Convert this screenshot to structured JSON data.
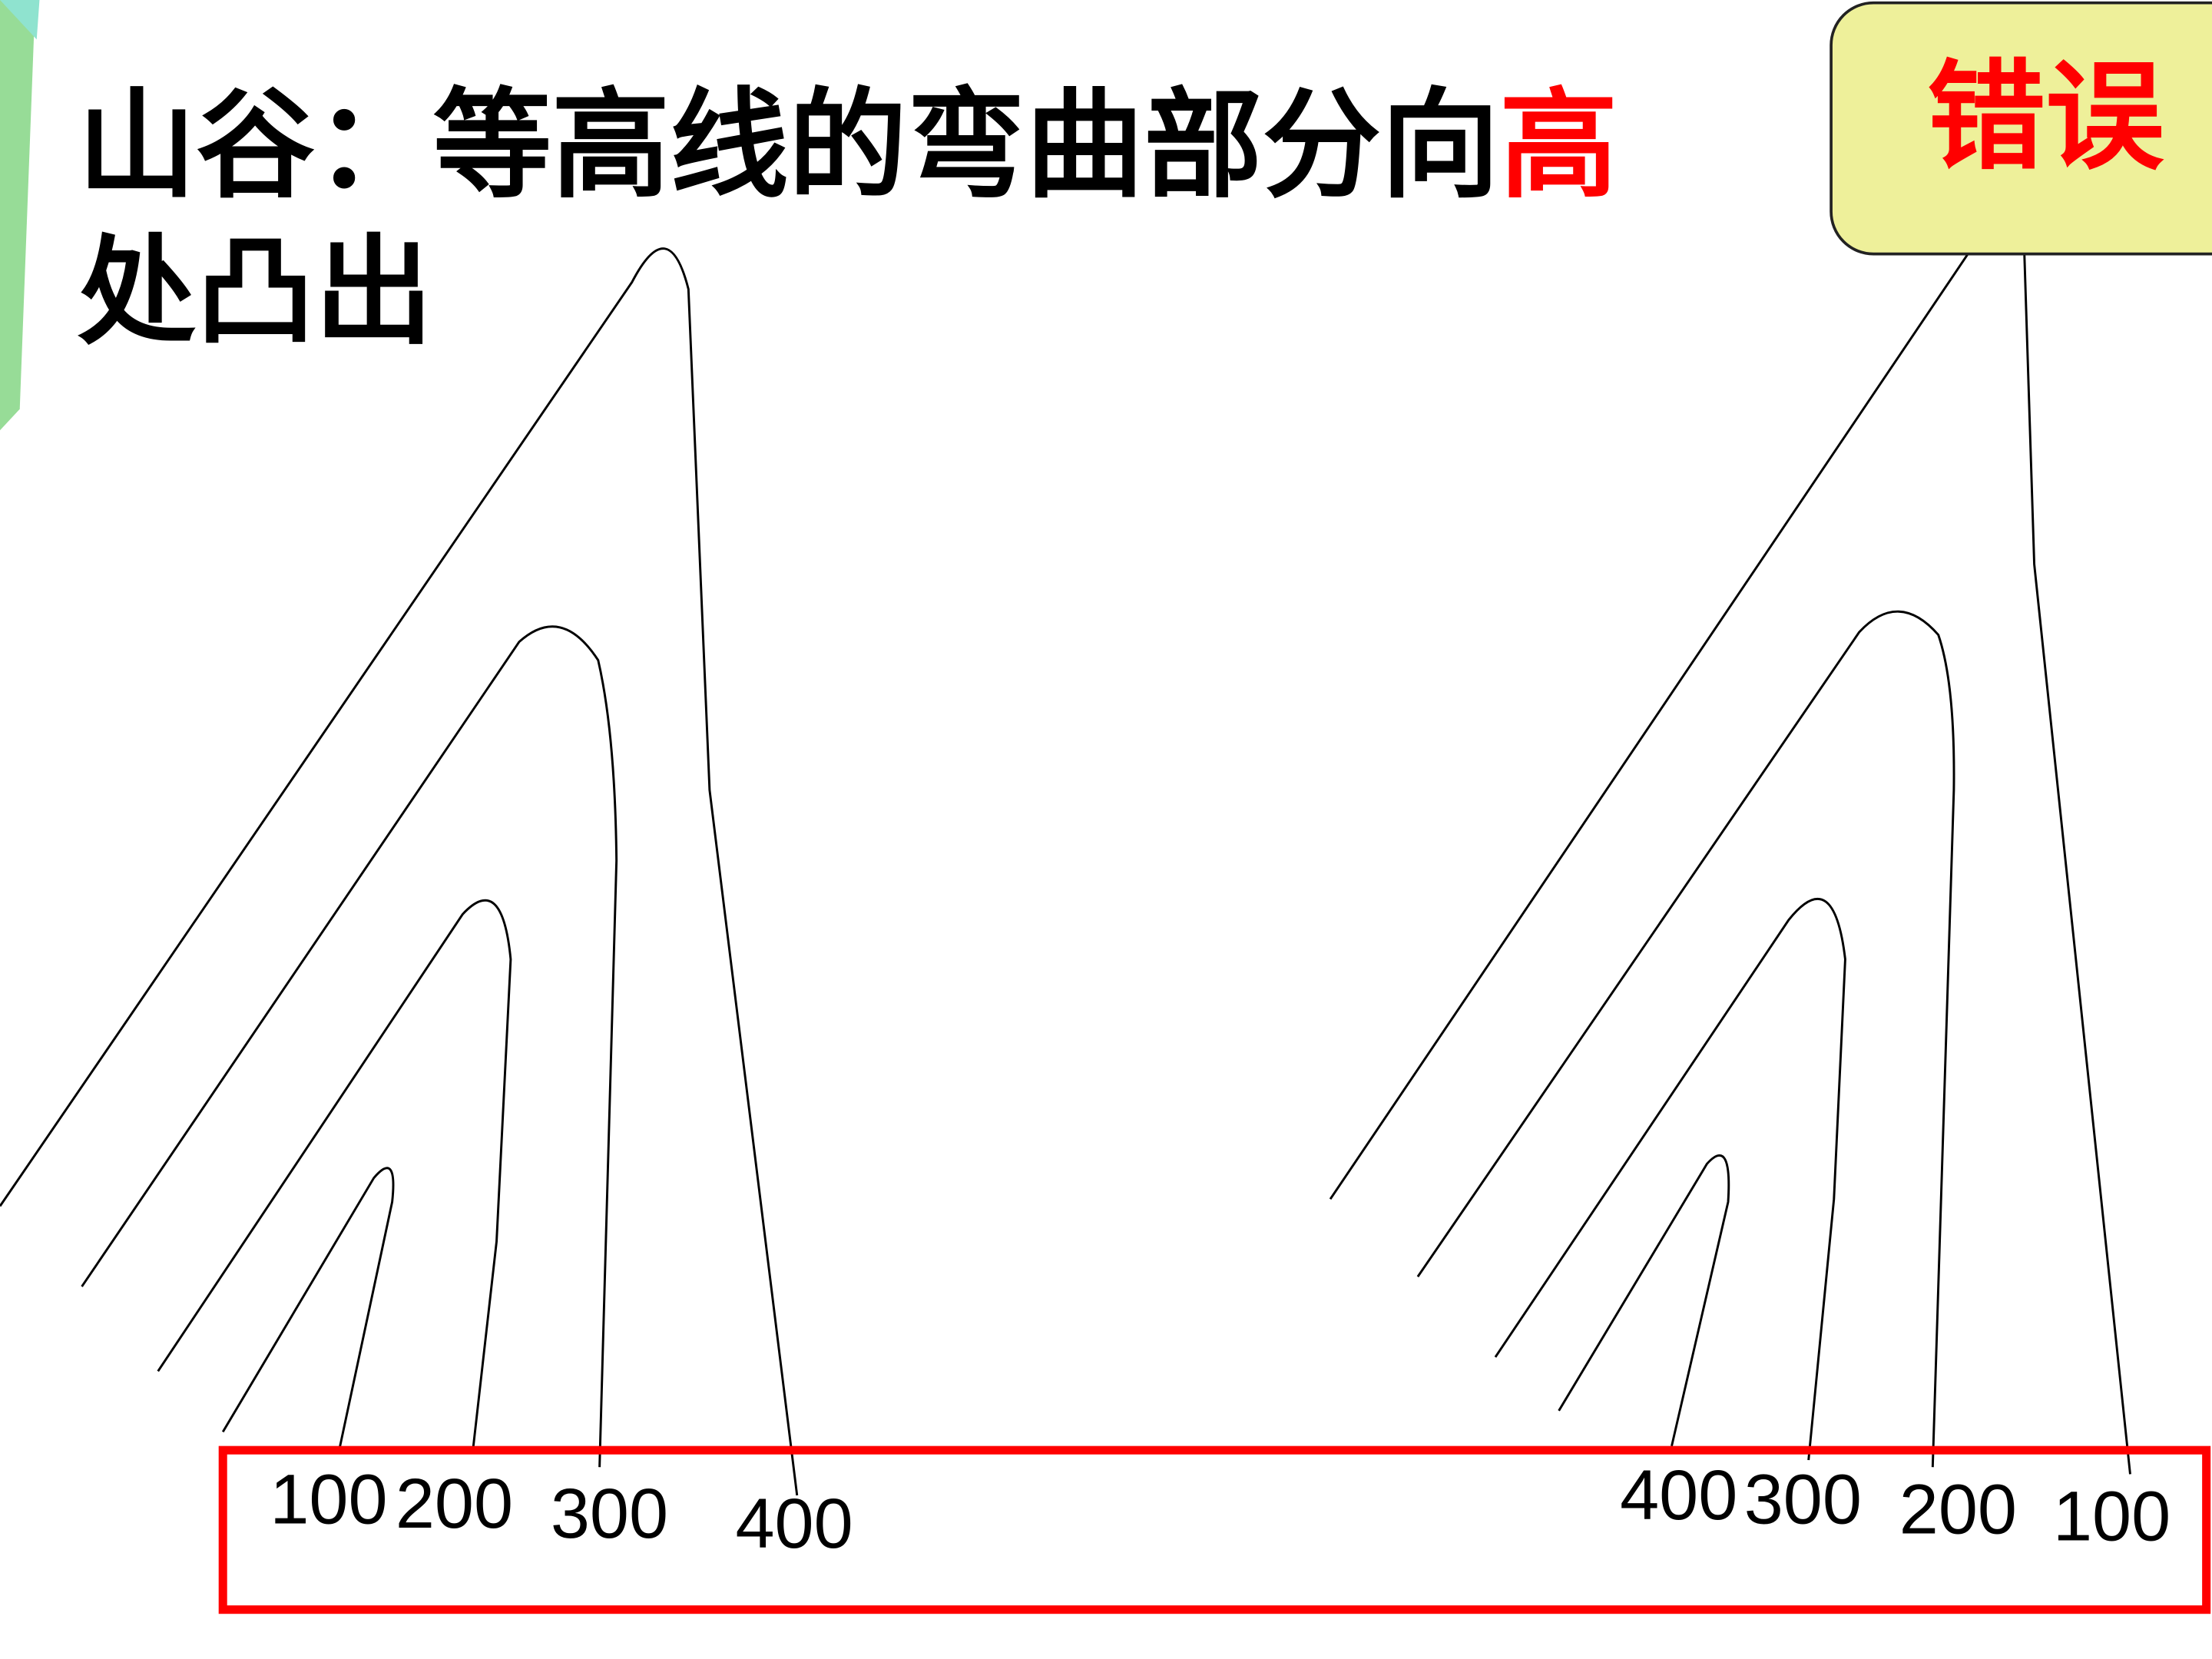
{
  "slide": {
    "title_black": "山谷：等高线的弯曲部分向",
    "title_red": "高",
    "title_line2": "处凸出",
    "verdict": "错误",
    "colors": {
      "accent_red": "#ff0000",
      "verdict_box_fill": "#eef09a",
      "side_bar_green": "#97dc97",
      "side_bar_teal": "#8fe3cf"
    }
  },
  "left_labels": [
    "100",
    "200",
    "300",
    "400"
  ],
  "right_labels": [
    "400",
    "300",
    "200",
    "100"
  ]
}
